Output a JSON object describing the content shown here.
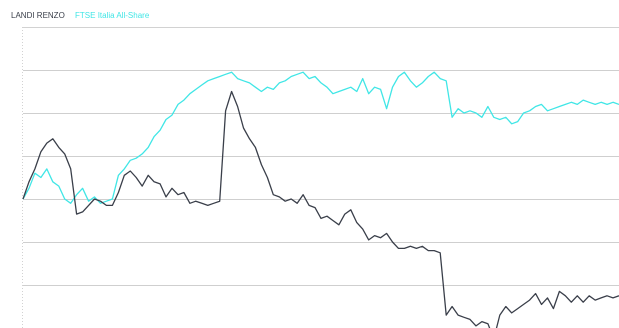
{
  "chart_data": {
    "type": "line",
    "title": "",
    "xlabel": "",
    "ylabel": "",
    "ylim": [
      0,
      7
    ],
    "y_ticks": [
      1,
      2,
      3,
      4,
      5,
      6
    ],
    "grid": true,
    "legend_placement": "top-left",
    "colors": {
      "grid": "#cfcfcf",
      "frame": "#d2d2d2"
    },
    "series": [
      {
        "name": "LANDI RENZO",
        "color": "#3a3f4a",
        "x": [
          0,
          1,
          2,
          3,
          4,
          5,
          6,
          7,
          8,
          9,
          10,
          11,
          12,
          13,
          14,
          15,
          16,
          17,
          18,
          19,
          20,
          21,
          22,
          23,
          24,
          25,
          26,
          27,
          28,
          29,
          30,
          31,
          32,
          33,
          34,
          35,
          36,
          37,
          38,
          39,
          40,
          41,
          42,
          43,
          44,
          45,
          46,
          47,
          48,
          49,
          50,
          51,
          52,
          53,
          54,
          55,
          56,
          57,
          58,
          59,
          60,
          61,
          62,
          63,
          64,
          65,
          66,
          67,
          68,
          69,
          70,
          71,
          72,
          73,
          74,
          75,
          76,
          77,
          78,
          79,
          80,
          81,
          82,
          83,
          84,
          85,
          86,
          87,
          88,
          89,
          90,
          91,
          92,
          93,
          94,
          95,
          96,
          97,
          98,
          99,
          100
        ],
        "y": [
          3.0,
          3.4,
          3.7,
          4.1,
          4.3,
          4.4,
          4.2,
          4.05,
          3.7,
          2.65,
          2.7,
          2.85,
          3.0,
          2.95,
          2.85,
          2.85,
          3.15,
          3.55,
          3.65,
          3.5,
          3.3,
          3.55,
          3.4,
          3.35,
          3.05,
          3.25,
          3.1,
          3.15,
          2.9,
          2.95,
          2.9,
          2.85,
          2.9,
          2.95,
          5.05,
          5.5,
          5.15,
          4.65,
          4.4,
          4.2,
          3.8,
          3.5,
          3.1,
          3.05,
          2.95,
          3.0,
          2.9,
          3.1,
          2.85,
          2.8,
          2.55,
          2.6,
          2.5,
          2.4,
          2.65,
          2.75,
          2.45,
          2.3,
          2.05,
          2.15,
          2.1,
          2.2,
          2.0,
          1.85,
          1.85,
          1.9,
          1.85,
          1.9,
          1.8,
          1.8,
          1.75,
          0.3,
          0.5,
          0.3,
          0.25,
          0.2,
          0.05,
          0.15,
          0.1,
          -0.25,
          0.3,
          0.5,
          0.35,
          0.45,
          0.55,
          0.65,
          0.8,
          0.55,
          0.7,
          0.45,
          0.85,
          0.75,
          0.6,
          0.75,
          0.6,
          0.75,
          0.65,
          0.7,
          0.75,
          0.7,
          0.75
        ]
      },
      {
        "name": "FTSE Italia All-Share",
        "color": "#40e6e6",
        "x": [
          0,
          1,
          2,
          3,
          4,
          5,
          6,
          7,
          8,
          9,
          10,
          11,
          12,
          13,
          14,
          15,
          16,
          17,
          18,
          19,
          20,
          21,
          22,
          23,
          24,
          25,
          26,
          27,
          28,
          29,
          30,
          31,
          32,
          33,
          34,
          35,
          36,
          37,
          38,
          39,
          40,
          41,
          42,
          43,
          44,
          45,
          46,
          47,
          48,
          49,
          50,
          51,
          52,
          53,
          54,
          55,
          56,
          57,
          58,
          59,
          60,
          61,
          62,
          63,
          64,
          65,
          66,
          67,
          68,
          69,
          70,
          71,
          72,
          73,
          74,
          75,
          76,
          77,
          78,
          79,
          80,
          81,
          82,
          83,
          84,
          85,
          86,
          87,
          88,
          89,
          90,
          91,
          92,
          93,
          94,
          95,
          96,
          97,
          98,
          99,
          100
        ],
        "y": [
          3.0,
          3.25,
          3.6,
          3.5,
          3.7,
          3.4,
          3.3,
          3.0,
          2.9,
          3.1,
          3.25,
          2.95,
          3.05,
          2.9,
          2.95,
          3.0,
          3.55,
          3.7,
          3.9,
          3.95,
          4.05,
          4.2,
          4.45,
          4.6,
          4.85,
          4.95,
          5.2,
          5.3,
          5.45,
          5.55,
          5.65,
          5.75,
          5.8,
          5.85,
          5.9,
          5.95,
          5.8,
          5.75,
          5.7,
          5.6,
          5.5,
          5.6,
          5.55,
          5.7,
          5.75,
          5.85,
          5.9,
          5.95,
          5.8,
          5.85,
          5.7,
          5.6,
          5.45,
          5.5,
          5.55,
          5.6,
          5.5,
          5.8,
          5.45,
          5.6,
          5.55,
          5.1,
          5.6,
          5.85,
          5.95,
          5.75,
          5.6,
          5.7,
          5.85,
          5.95,
          5.8,
          5.75,
          4.9,
          5.1,
          5.0,
          5.05,
          5.0,
          4.9,
          5.15,
          4.9,
          4.85,
          4.9,
          4.75,
          4.8,
          5.0,
          5.05,
          5.15,
          5.2,
          5.05,
          5.1,
          5.15,
          5.2,
          5.25,
          5.2,
          5.3,
          5.25,
          5.2,
          5.25,
          5.2,
          5.25,
          5.2
        ]
      }
    ]
  }
}
